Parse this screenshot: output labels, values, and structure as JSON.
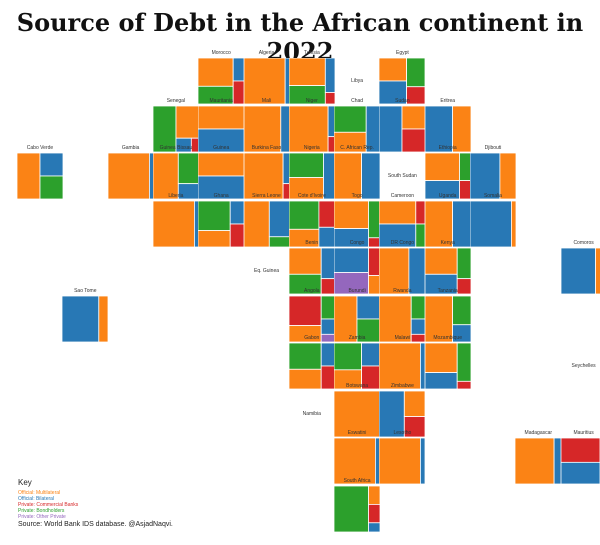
{
  "title": "Source of Debt in the African continent in 2022",
  "key": {
    "title": "Key",
    "items": [
      {
        "label": "Official: Multilateral",
        "color": "#fb8315"
      },
      {
        "label": "Official: Bilateral",
        "color": "#2878b5"
      },
      {
        "label": "Private: Commercial Banks",
        "color": "#d62728"
      },
      {
        "label": "Private: Bondholders",
        "color": "#2ca02c"
      },
      {
        "label": "Private: Other Private",
        "color": "#9467bd"
      }
    ]
  },
  "source": "Source: World Bank IDS database. @AsjadNaqvi.",
  "chart_data": {
    "type": "treemap-tile-grid",
    "categories": [
      "Official: Multilateral",
      "Official: Bilateral",
      "Private: Commercial Banks",
      "Private: Bondholders",
      "Private: Other Private"
    ],
    "countries": [
      {
        "name": "Morocco",
        "row": 0,
        "col": 4,
        "values": [
          40,
          10,
          10,
          25,
          0
        ]
      },
      {
        "name": "Algeria",
        "row": 0,
        "col": 5,
        "values": [
          85,
          10,
          0,
          0,
          0
        ]
      },
      {
        "name": "Tunisia",
        "row": 0,
        "col": 6,
        "values": [
          45,
          15,
          5,
          30,
          0
        ]
      },
      {
        "name": "Libya",
        "row": 0,
        "col": 7,
        "values": []
      },
      {
        "name": "Egypt",
        "row": 0,
        "col": 8,
        "values": [
          30,
          30,
          15,
          25,
          0
        ]
      },
      {
        "name": "Senegal",
        "row": 1,
        "col": 3,
        "values": [
          35,
          10,
          5,
          50,
          0
        ]
      },
      {
        "name": "Mauritania",
        "row": 1,
        "col": 4,
        "values": [
          50,
          50,
          0,
          0,
          0
        ]
      },
      {
        "name": "Mali",
        "row": 1,
        "col": 5,
        "values": [
          80,
          20,
          0,
          0,
          0
        ]
      },
      {
        "name": "Niger",
        "row": 1,
        "col": 6,
        "values": [
          85,
          10,
          5,
          0,
          0
        ]
      },
      {
        "name": "Chad",
        "row": 1,
        "col": 7,
        "values": [
          30,
          30,
          0,
          40,
          0
        ]
      },
      {
        "name": "Sudan",
        "row": 1,
        "col": 8,
        "values": [
          25,
          50,
          25,
          0,
          0
        ]
      },
      {
        "name": "Eritrea",
        "row": 1,
        "col": 9,
        "values": [
          40,
          60,
          0,
          0,
          0
        ]
      },
      {
        "name": "Cabo Verde",
        "row": 2,
        "col": 0,
        "values": [
          50,
          25,
          0,
          25,
          0
        ]
      },
      {
        "name": "Gambia",
        "row": 2,
        "col": 2,
        "values": [
          90,
          10,
          0,
          0,
          0
        ]
      },
      {
        "name": "Guinea Bissau",
        "row": 2,
        "col": 3,
        "values": [
          55,
          15,
          0,
          30,
          0
        ]
      },
      {
        "name": "Guinea",
        "row": 2,
        "col": 4,
        "values": [
          50,
          50,
          0,
          0,
          0
        ]
      },
      {
        "name": "Burkina Faso",
        "row": 2,
        "col": 5,
        "values": [
          85,
          10,
          5,
          0,
          0
        ]
      },
      {
        "name": "Nigeria",
        "row": 2,
        "col": 6,
        "values": [
          35,
          25,
          0,
          40,
          0
        ]
      },
      {
        "name": "C. African Rep.",
        "row": 2,
        "col": 7,
        "values": [
          60,
          40,
          0,
          0,
          0
        ]
      },
      {
        "name": "South Sudan",
        "row": 2,
        "col": 8,
        "values": []
      },
      {
        "name": "Ethiopia",
        "row": 2,
        "col": 9,
        "values": [
          45,
          30,
          10,
          15,
          0
        ]
      },
      {
        "name": "Djibouti",
        "row": 2,
        "col": 10,
        "values": [
          35,
          65,
          0,
          0,
          0
        ]
      },
      {
        "name": "Liberia",
        "row": 3,
        "col": 3,
        "values": [
          90,
          10,
          0,
          0,
          0
        ]
      },
      {
        "name": "Ghana",
        "row": 3,
        "col": 4,
        "values": [
          25,
          15,
          15,
          45,
          0
        ]
      },
      {
        "name": "Sierra Leone",
        "row": 3,
        "col": 5,
        "values": [
          55,
          35,
          0,
          10,
          0
        ]
      },
      {
        "name": "Cote d'Ivoire",
        "row": 3,
        "col": 6,
        "values": [
          25,
          15,
          20,
          40,
          0
        ]
      },
      {
        "name": "Togo",
        "row": 3,
        "col": 7,
        "values": [
          45,
          30,
          5,
          20,
          0
        ]
      },
      {
        "name": "Cameroon",
        "row": 3,
        "col": 8,
        "values": [
          40,
          40,
          10,
          10,
          0
        ]
      },
      {
        "name": "Uganda",
        "row": 3,
        "col": 9,
        "values": [
          60,
          40,
          0,
          0,
          0
        ]
      },
      {
        "name": "Somalia",
        "row": 3,
        "col": 10,
        "values": [
          10,
          90,
          0,
          0,
          0
        ]
      },
      {
        "name": "Benin",
        "row": 4,
        "col": 6,
        "values": [
          40,
          20,
          10,
          30,
          0
        ]
      },
      {
        "name": "Eq. Guinea",
        "row": 4,
        "col": 5,
        "values": []
      },
      {
        "name": "Congo",
        "row": 4,
        "col": 7,
        "values": [
          10,
          40,
          15,
          0,
          35
        ]
      },
      {
        "name": "DR Congo",
        "row": 4,
        "col": 8,
        "values": [
          65,
          35,
          0,
          0,
          0
        ]
      },
      {
        "name": "Kenya",
        "row": 4,
        "col": 9,
        "values": [
          40,
          30,
          10,
          20,
          0
        ]
      },
      {
        "name": "Comoros",
        "row": 4,
        "col": 12,
        "values": [
          25,
          75,
          0,
          0,
          0
        ]
      },
      {
        "name": "Sao Tome",
        "row": 5,
        "col": 1,
        "values": [
          20,
          80,
          0,
          0,
          0
        ]
      },
      {
        "name": "Angola",
        "row": 5,
        "col": 6,
        "values": [
          25,
          10,
          45,
          15,
          5
        ]
      },
      {
        "name": "Burundi",
        "row": 5,
        "col": 7,
        "values": [
          50,
          25,
          0,
          25,
          0
        ]
      },
      {
        "name": "Rwanda",
        "row": 5,
        "col": 8,
        "values": [
          70,
          10,
          5,
          15,
          0
        ]
      },
      {
        "name": "Tanzania",
        "row": 5,
        "col": 9,
        "values": [
          60,
          15,
          0,
          25,
          0
        ]
      },
      {
        "name": "Gabon",
        "row": 6,
        "col": 6,
        "values": [
          30,
          15,
          15,
          40,
          0
        ]
      },
      {
        "name": "Zambia",
        "row": 6,
        "col": 7,
        "values": [
          25,
          20,
          20,
          35,
          0
        ]
      },
      {
        "name": "Malawi",
        "row": 6,
        "col": 8,
        "values": [
          90,
          10,
          0,
          0,
          0
        ]
      },
      {
        "name": "Mozambique",
        "row": 6,
        "col": 9,
        "values": [
          45,
          25,
          5,
          25,
          0
        ]
      },
      {
        "name": "Seychelles",
        "row": 6,
        "col": 12,
        "values": []
      },
      {
        "name": "Namibia",
        "row": 7,
        "col": 6,
        "values": []
      },
      {
        "name": "Botswana",
        "row": 7,
        "col": 7,
        "values": [
          100,
          0,
          0,
          0,
          0
        ]
      },
      {
        "name": "Zimbabwe",
        "row": 7,
        "col": 8,
        "values": [
          25,
          55,
          20,
          0,
          0
        ]
      },
      {
        "name": "Eswatini",
        "row": 8,
        "col": 7,
        "values": [
          90,
          10,
          0,
          0,
          0
        ]
      },
      {
        "name": "Lesotho",
        "row": 8,
        "col": 8,
        "values": [
          90,
          10,
          0,
          0,
          0
        ]
      },
      {
        "name": "Madagascar",
        "row": 8,
        "col": 11,
        "values": [
          85,
          15,
          0,
          0,
          0
        ]
      },
      {
        "name": "Mauritius",
        "row": 8,
        "col": 12,
        "values": [
          15,
          40,
          45,
          0,
          0
        ]
      },
      {
        "name": "South Africa",
        "row": 9,
        "col": 7,
        "values": [
          10,
          5,
          10,
          75,
          0
        ]
      }
    ]
  }
}
